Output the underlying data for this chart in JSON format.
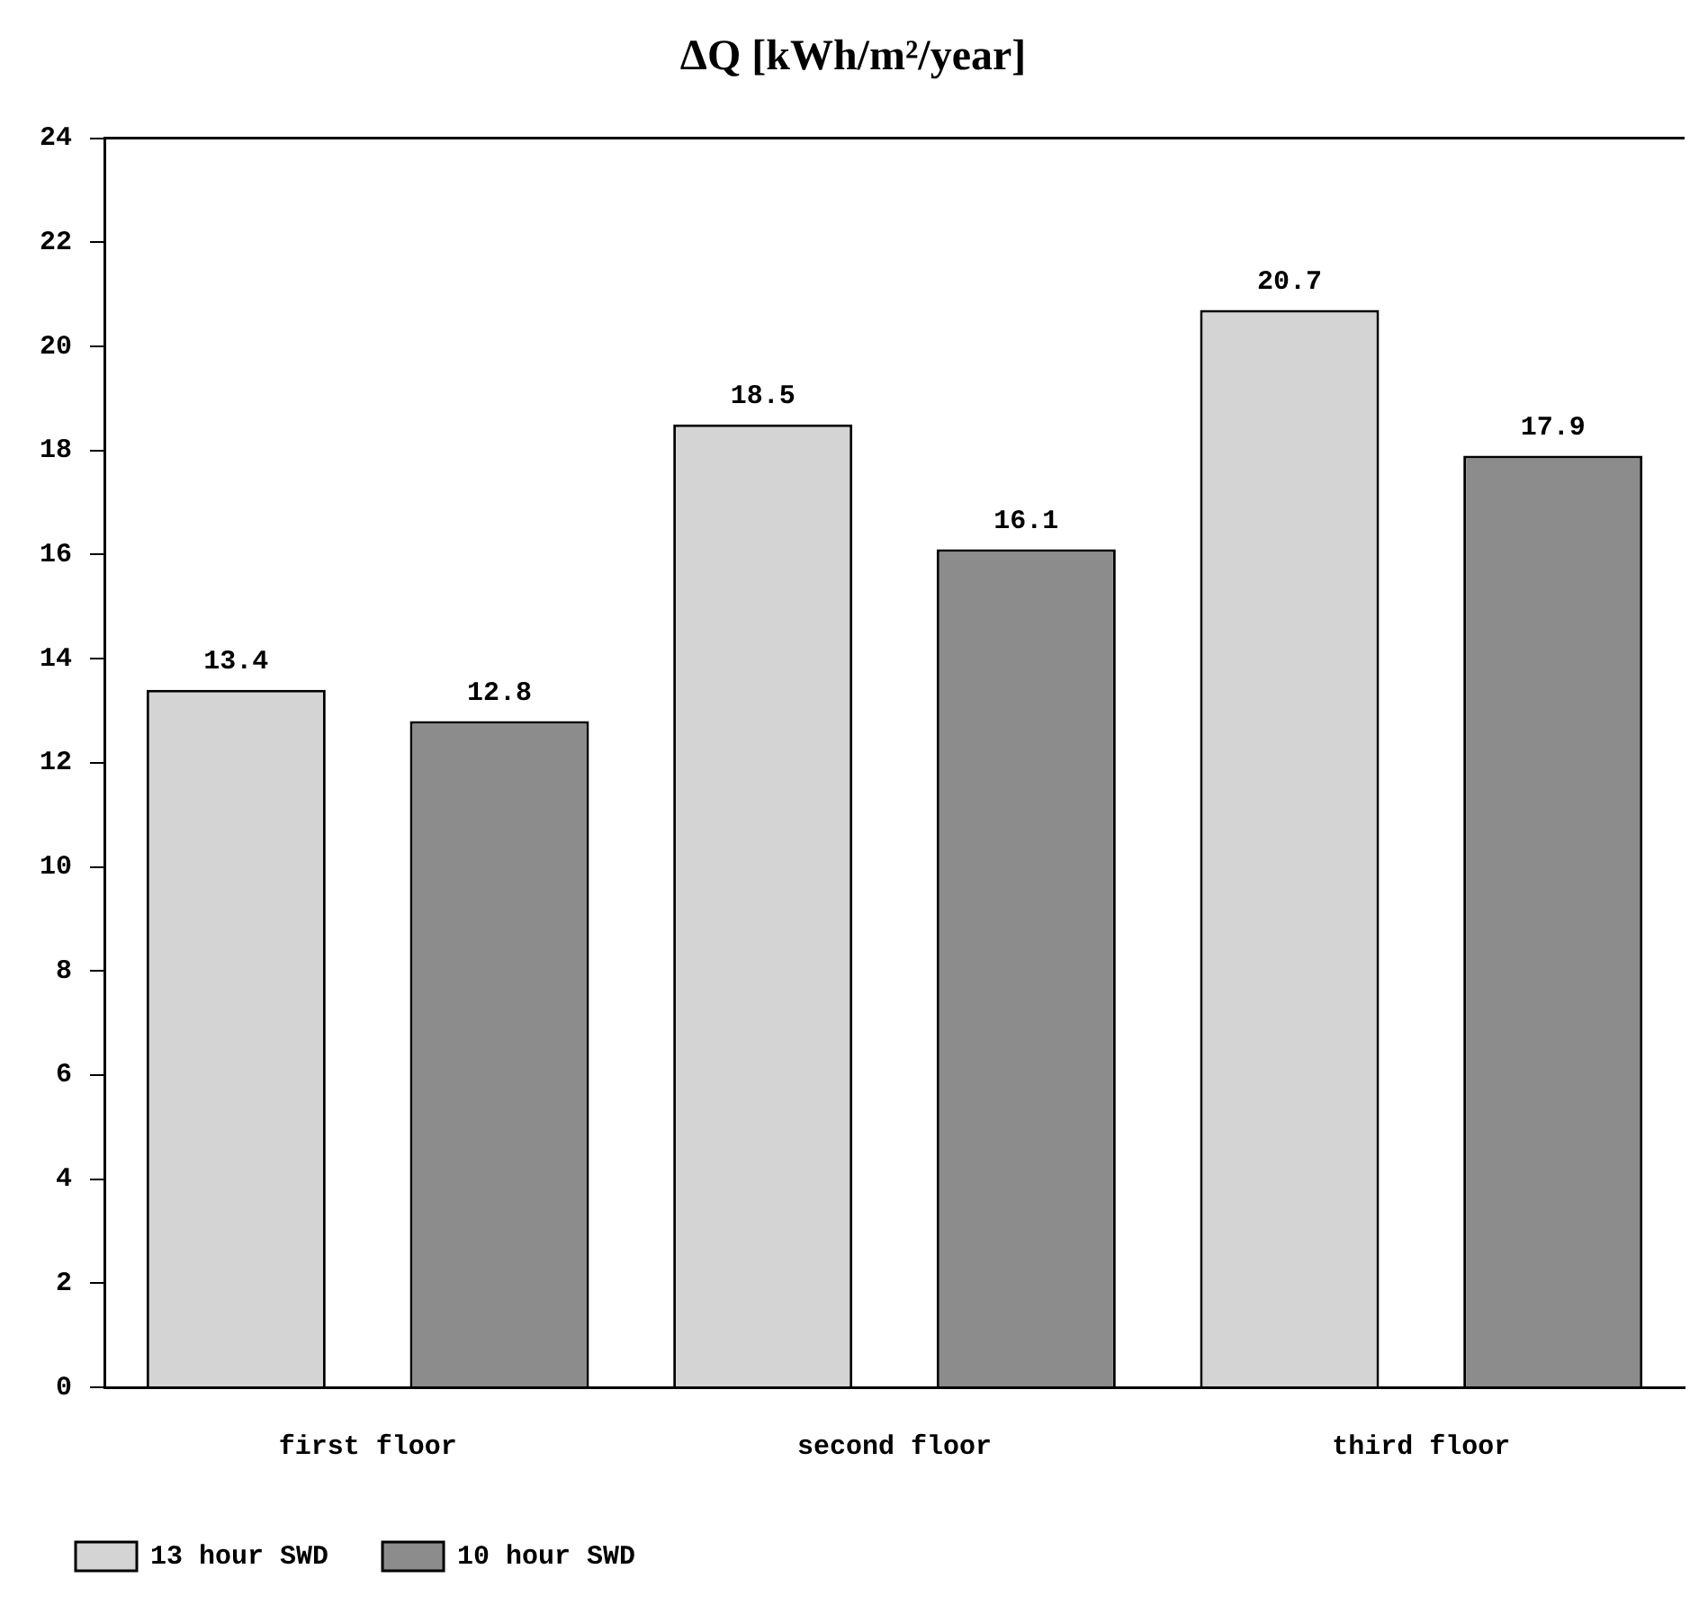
{
  "chart_data": {
    "type": "bar",
    "title": "ΔQ [kWh/m²/year]",
    "categories": [
      "first floor",
      "second floor",
      "third floor"
    ],
    "series": [
      {
        "name": "13 hour SWD",
        "color": "#d4d4d4",
        "values": [
          13.4,
          18.5,
          20.7
        ]
      },
      {
        "name": "10 hour SWD",
        "color": "#8c8c8c",
        "values": [
          12.8,
          16.1,
          17.9
        ]
      }
    ],
    "ylim": [
      0,
      24
    ],
    "yticks": [
      0,
      2,
      4,
      6,
      8,
      10,
      12,
      14,
      16,
      18,
      20,
      22,
      24
    ],
    "grid": false,
    "legend": "bottom left",
    "data_labels": true
  }
}
